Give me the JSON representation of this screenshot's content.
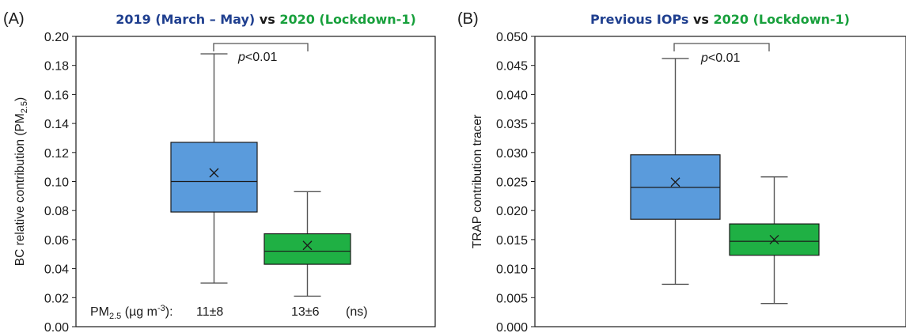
{
  "panels": [
    {
      "label": "(A)",
      "title": [
        {
          "text": "2019 (March – May)",
          "color": "#1f3f8f"
        },
        {
          "text": " vs ",
          "color": "#1a1a1a"
        },
        {
          "text": "2020 (Lockdown-1)",
          "color": "#18a03c"
        }
      ],
      "ylabel_main": "BC relative contribution (PM",
      "ylabel_sub": "2.5",
      "ylabel_end": ")",
      "pvalue_p": "p",
      "pvalue_rest": "<0.01",
      "footer": {
        "prefix": "PM",
        "prefix_sub": "2.5",
        "unit_a": " (µg m",
        "unit_sup": "-3",
        "unit_b": "):",
        "value_1": "11±8",
        "value_2": "13±6",
        "note": "(ns)"
      }
    },
    {
      "label": "(B)",
      "title": [
        {
          "text": "Previous IOPs",
          "color": "#1f3f8f"
        },
        {
          "text": " vs ",
          "color": "#1a1a1a"
        },
        {
          "text": "2020 (Lockdown-1)",
          "color": "#18a03c"
        }
      ],
      "ylabel_main": "TRAP contribution tracer",
      "ylabel_sub": "",
      "ylabel_end": "",
      "pvalue_p": "p",
      "pvalue_rest": "<0.01"
    }
  ],
  "chart_data": [
    {
      "type": "box",
      "ylim": [
        0.0,
        0.2
      ],
      "yticks": [
        "0.00",
        "0.02",
        "0.04",
        "0.06",
        "0.08",
        "0.10",
        "0.12",
        "0.14",
        "0.16",
        "0.18",
        "0.20"
      ],
      "grid": false,
      "boxes": [
        {
          "min": 0.03,
          "q1": 0.079,
          "median": 0.1,
          "q3": 0.127,
          "max": 0.188,
          "mean": 0.106,
          "color": "#5a9bdc"
        },
        {
          "min": 0.021,
          "q1": 0.043,
          "median": 0.052,
          "q3": 0.064,
          "max": 0.093,
          "mean": 0.056,
          "color": "#1fb044"
        }
      ]
    },
    {
      "type": "box",
      "ylim": [
        0.0,
        0.05
      ],
      "yticks": [
        "0.000",
        "0.005",
        "0.010",
        "0.015",
        "0.020",
        "0.025",
        "0.030",
        "0.035",
        "0.040",
        "0.045",
        "0.050"
      ],
      "grid": false,
      "boxes": [
        {
          "min": 0.0073,
          "q1": 0.0185,
          "median": 0.024,
          "q3": 0.0296,
          "max": 0.0462,
          "mean": 0.0249,
          "color": "#5a9bdc"
        },
        {
          "min": 0.004,
          "q1": 0.0123,
          "median": 0.0147,
          "q3": 0.0177,
          "max": 0.0258,
          "mean": 0.015,
          "color": "#1fb044"
        }
      ]
    }
  ]
}
